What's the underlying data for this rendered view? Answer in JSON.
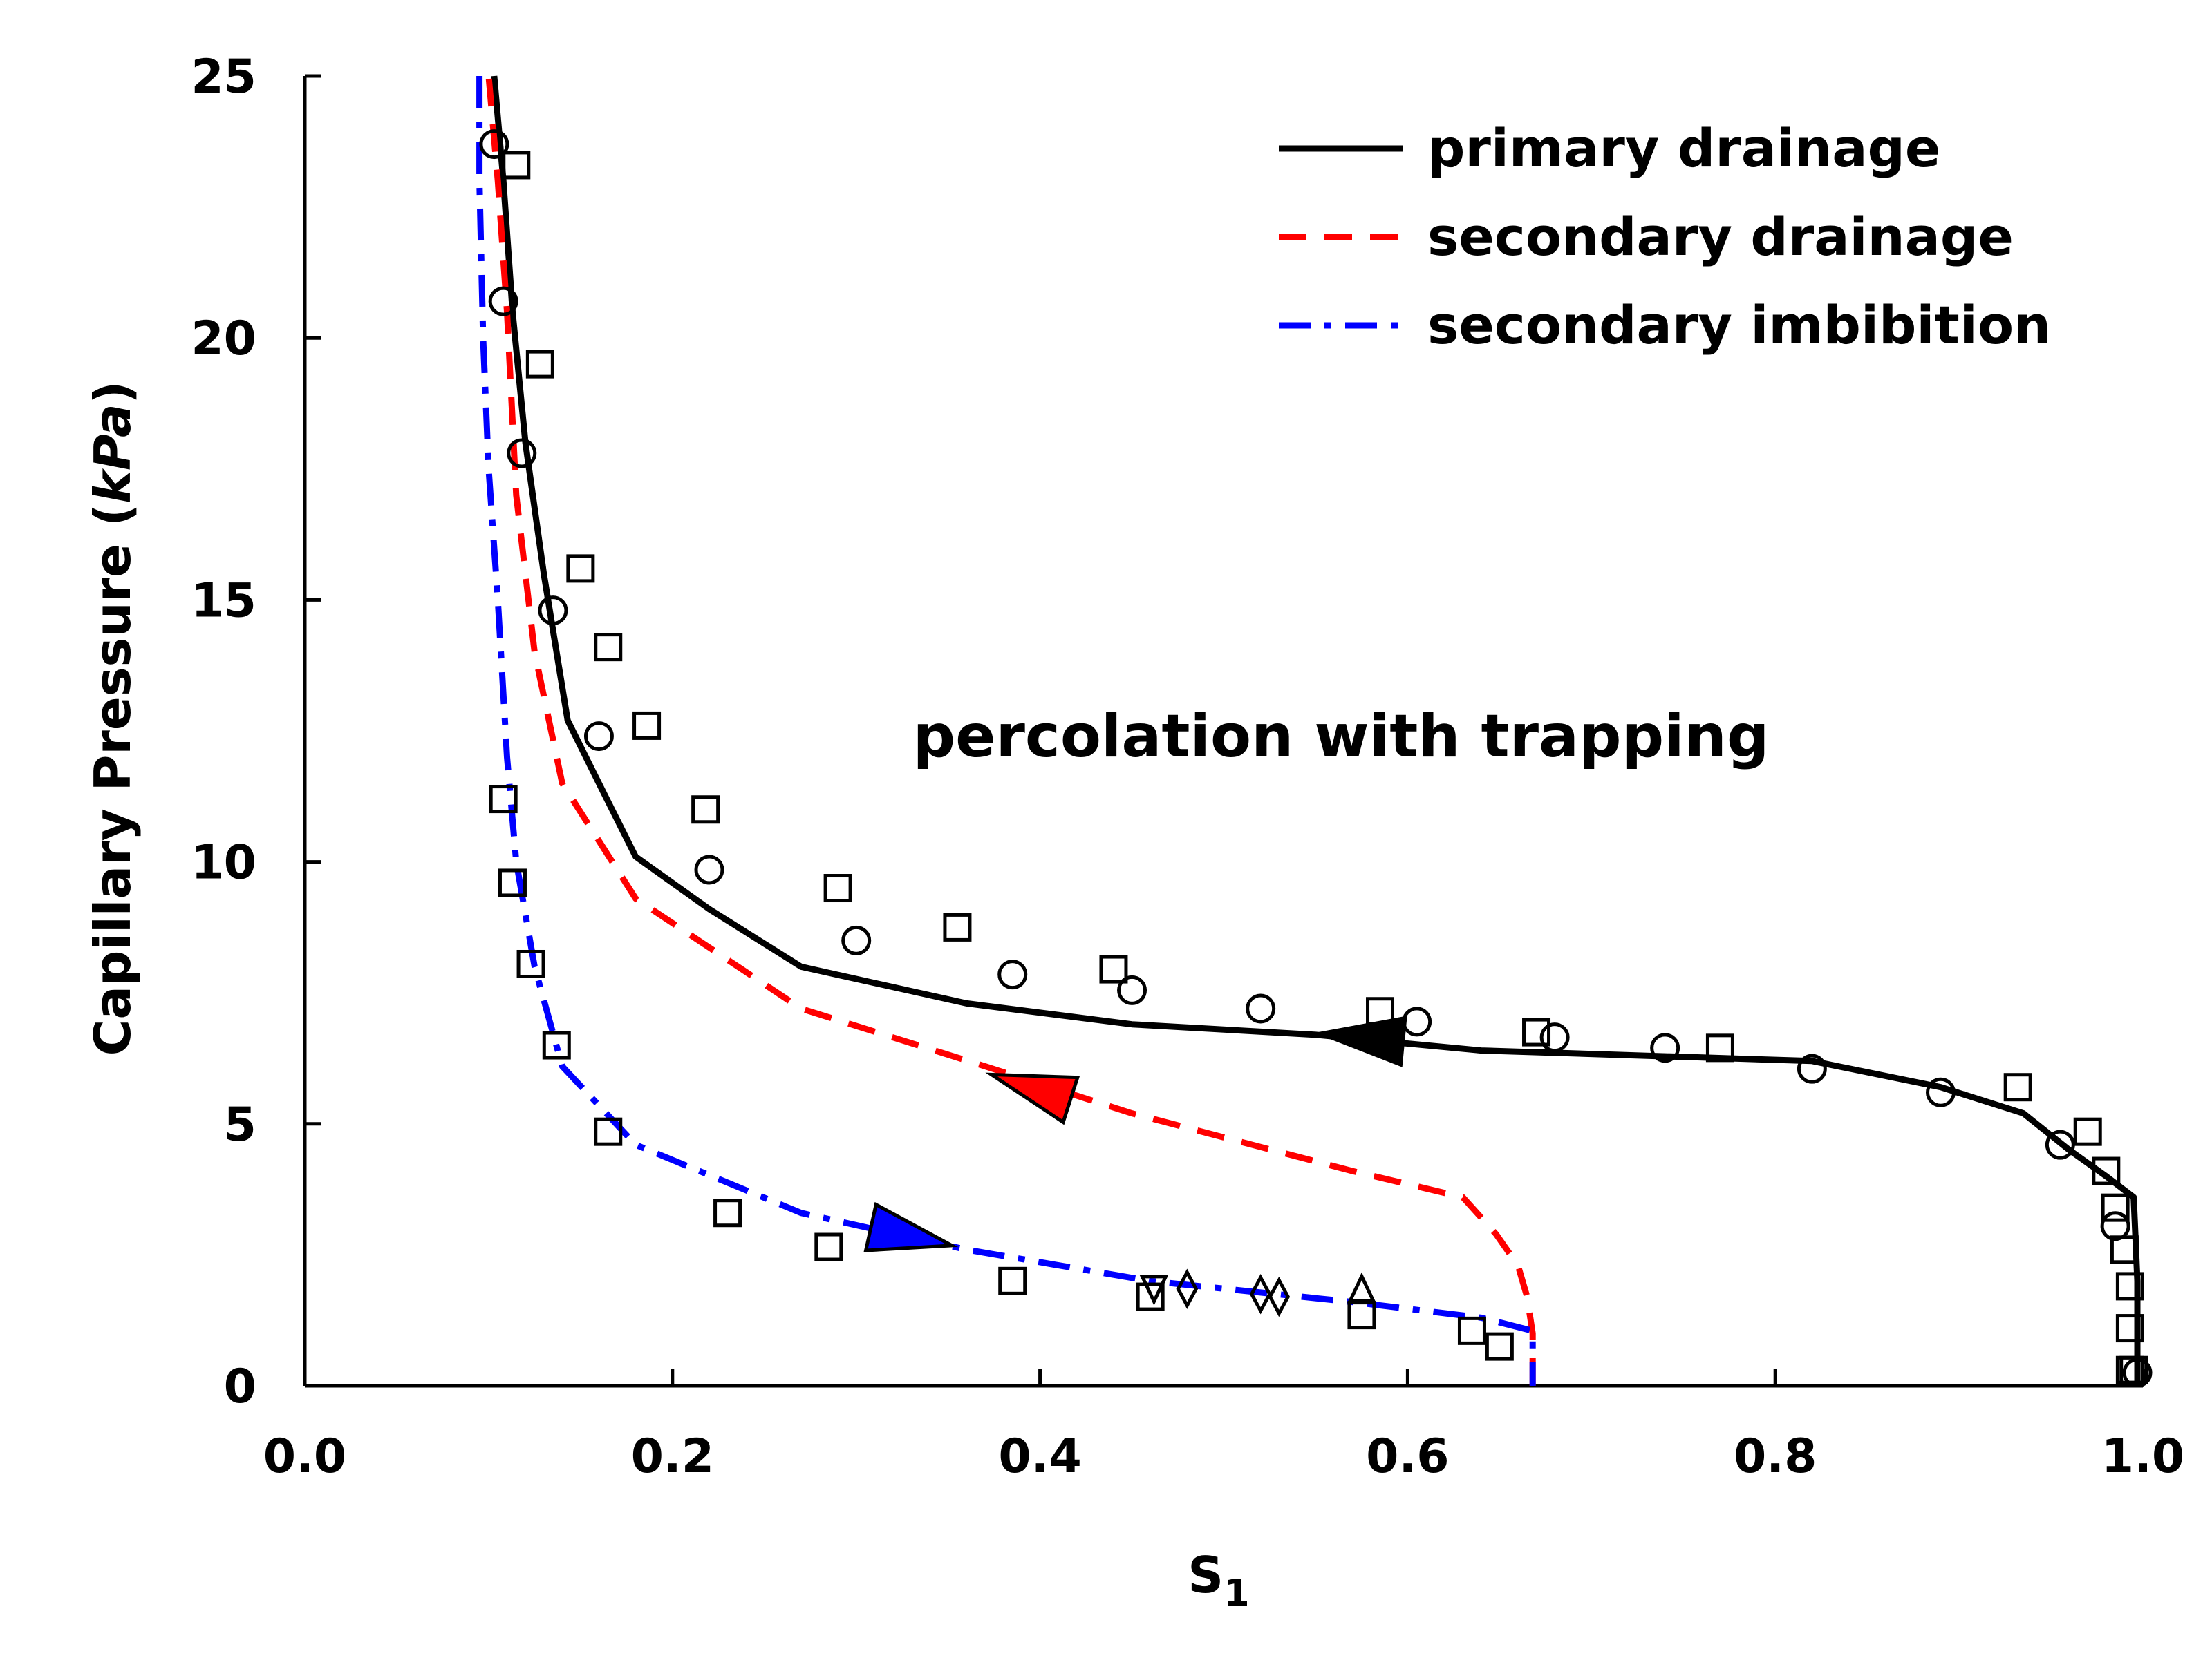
{
  "chart_data": {
    "type": "line",
    "title": "",
    "xlabel_main": "S",
    "xlabel_sub": "1",
    "ylabel_main": "Capillary Pressure (",
    "ylabel_unit": "kPa",
    "ylabel_close": ")",
    "xlim": [
      0.0,
      1.0
    ],
    "ylim": [
      0,
      25
    ],
    "xticks": [
      "0.0",
      "0.2",
      "0.4",
      "0.6",
      "0.8",
      "1.0"
    ],
    "yticks": [
      "0",
      "5",
      "10",
      "15",
      "20",
      "25"
    ],
    "xtick_values": [
      0.0,
      0.2,
      0.4,
      0.6,
      0.8,
      1.0
    ],
    "ytick_values": [
      0,
      5,
      10,
      15,
      20,
      25
    ],
    "legend_position": "top-right",
    "annotation": "percolation with trapping",
    "series": [
      {
        "name": "primary drainage",
        "color": "#000000",
        "style": "solid",
        "x": [
          0.103,
          0.108,
          0.113,
          0.12,
          0.13,
          0.143,
          0.16,
          0.18,
          0.22,
          0.27,
          0.36,
          0.45,
          0.55,
          0.64,
          0.73,
          0.82,
          0.89,
          0.935,
          0.96,
          0.98,
          0.995,
          0.997,
          0.997
        ],
        "y": [
          25,
          23,
          20.5,
          18,
          15.5,
          12.7,
          11.5,
          10.1,
          9.1,
          8.0,
          7.3,
          6.9,
          6.7,
          6.4,
          6.3,
          6.2,
          5.7,
          5.2,
          4.5,
          4.0,
          3.6,
          2,
          0
        ],
        "arrow": {
          "x": 0.575,
          "y": 6.65,
          "direction": "left",
          "color": "#000000"
        }
      },
      {
        "name": "secondary drainage",
        "color": "#ff0000",
        "style": "dashed",
        "x": [
          0.668,
          0.668,
          0.665,
          0.66,
          0.648,
          0.63,
          0.57,
          0.45,
          0.37,
          0.27,
          0.18,
          0.14,
          0.125,
          0.115,
          0.11,
          0.105,
          0.1
        ],
        "y": [
          0,
          1.0,
          1.7,
          2.3,
          2.9,
          3.6,
          4.1,
          5.2,
          6.1,
          7.2,
          9.3,
          11.5,
          14.0,
          17.0,
          20.5,
          23.0,
          25
        ],
        "arrow": {
          "x": 0.395,
          "y": 5.7,
          "direction": "left",
          "color": "#ff0000"
        }
      },
      {
        "name": "secondary imbibition",
        "color": "#0000ff",
        "style": "dashdot",
        "x": [
          0.095,
          0.095,
          0.097,
          0.1,
          0.105,
          0.11,
          0.115,
          0.125,
          0.14,
          0.18,
          0.27,
          0.36,
          0.46,
          0.57,
          0.64,
          0.668,
          0.668
        ],
        "y": [
          25,
          23,
          20,
          17.5,
          15,
          12,
          10,
          8,
          6.1,
          4.6,
          3.3,
          2.6,
          2.0,
          1.6,
          1.3,
          1.05,
          0
        ],
        "arrow": {
          "x": 0.33,
          "y": 2.85,
          "direction": "right",
          "color": "#0000ff"
        }
      }
    ],
    "markers": {
      "circles": {
        "x": [
          0.103,
          0.108,
          0.118,
          0.135,
          0.16,
          0.22,
          0.3,
          0.385,
          0.45,
          0.52,
          0.605,
          0.68,
          0.74,
          0.82,
          0.89,
          0.955,
          0.985,
          0.997
        ],
        "y": [
          23.7,
          20.7,
          17.8,
          14.8,
          12.4,
          9.85,
          8.5,
          7.85,
          7.55,
          7.2,
          6.95,
          6.65,
          6.45,
          6.05,
          5.6,
          4.6,
          3.05,
          0.25
        ]
      },
      "squares": {
        "x": [
          0.115,
          0.128,
          0.15,
          0.165,
          0.186,
          0.218,
          0.29,
          0.355,
          0.44,
          0.585,
          0.67,
          0.77,
          0.932,
          0.97,
          0.98,
          0.985,
          0.99,
          0.993,
          0.993,
          0.993,
          0.995,
          0.108,
          0.113,
          0.123,
          0.137,
          0.165,
          0.23,
          0.285,
          0.385,
          0.46,
          0.575,
          0.635,
          0.65
        ],
        "y": [
          23.3,
          19.5,
          15.6,
          14.1,
          12.6,
          11.0,
          9.5,
          8.75,
          7.95,
          7.15,
          6.75,
          6.45,
          5.7,
          4.85,
          4.1,
          3.4,
          2.6,
          1.9,
          1.1,
          0.3,
          0.3,
          11.2,
          9.6,
          8.05,
          6.5,
          4.85,
          3.3,
          2.65,
          2.0,
          1.7,
          1.35,
          1.05,
          0.75
        ]
      },
      "diamonds": {
        "x": [
          0.48,
          0.52,
          0.53
        ],
        "y": [
          1.85,
          1.75,
          1.7
        ]
      },
      "triangles_up": {
        "x": [
          0.575
        ],
        "y": [
          1.8
        ]
      },
      "triangles_down": {
        "x": [
          0.462
        ],
        "y": [
          1.9
        ]
      }
    }
  }
}
